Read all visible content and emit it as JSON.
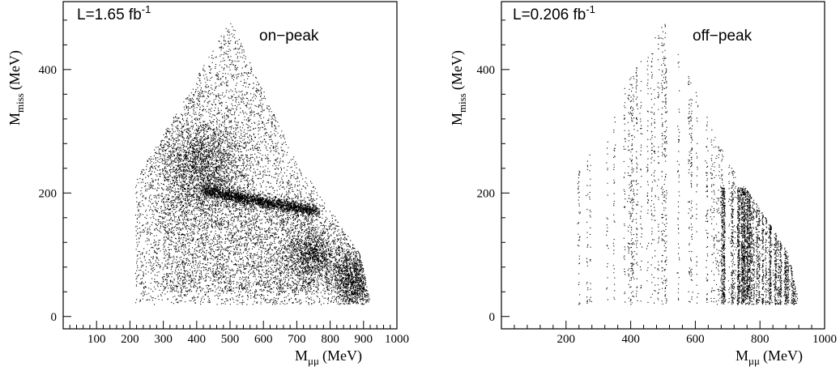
{
  "chart_data": [
    {
      "type": "scatter",
      "annotation_lumi": "L=1.65 fb",
      "annotation_lumi_sup": "-1",
      "annotation_label": "on−peak",
      "xlabel_main": "M",
      "xlabel_sub": "μμ",
      "xlabel_unit": "(MeV)",
      "ylabel_main": "M",
      "ylabel_sub": "miss",
      "ylabel_unit": "(MeV)",
      "xlim": [
        0,
        1000
      ],
      "ylim": [
        -20,
        510
      ],
      "xticks": [
        100,
        200,
        300,
        400,
        500,
        600,
        700,
        800,
        900,
        1000
      ],
      "yticks": [
        0,
        200,
        400
      ],
      "points": {
        "density": "dense",
        "envelope": "triangle: apex (500, 480); left edge (215, 20)-(215, 220)-(500, 480); right edge (500, 480)-(700, 250)-(800, 175)-(890, 100)-(920, 20)",
        "features": [
          {
            "feature": "dense band",
            "from": [
              420,
              205
            ],
            "to": [
              760,
              170
            ]
          },
          {
            "feature": "dense cluster",
            "center": [
              420,
              245
            ],
            "spread": [
              90,
              50
            ]
          },
          {
            "feature": "dense cluster",
            "center": [
              750,
              100
            ],
            "spread": [
              60,
              35
            ]
          },
          {
            "feature": "dense region",
            "center": [
              870,
              60
            ],
            "spread": [
              45,
              30
            ]
          }
        ]
      }
    },
    {
      "type": "scatter",
      "annotation_lumi": "L=0.206 fb",
      "annotation_lumi_sup": "-1",
      "annotation_label": "off−peak",
      "xlabel_main": "M",
      "xlabel_sub": "μμ",
      "xlabel_unit": "(MeV)",
      "ylabel_main": "M",
      "ylabel_sub": "miss",
      "ylabel_unit": "(MeV)",
      "xlim": [
        0,
        1000
      ],
      "ylim": [
        -20,
        510
      ],
      "xticks": [
        200,
        400,
        600,
        800,
        1000
      ],
      "yticks": [
        0,
        200,
        400
      ],
      "points": {
        "density": "sparse, vertical streaks",
        "envelope": "same triangle as on-peak",
        "features": [
          {
            "feature": "dense region",
            "center": [
              850,
              80
            ],
            "spread": [
              70,
              60
            ]
          },
          {
            "feature": "moderate region",
            "center": [
              700,
              180
            ],
            "spread": [
              40,
              30
            ]
          }
        ]
      }
    }
  ]
}
